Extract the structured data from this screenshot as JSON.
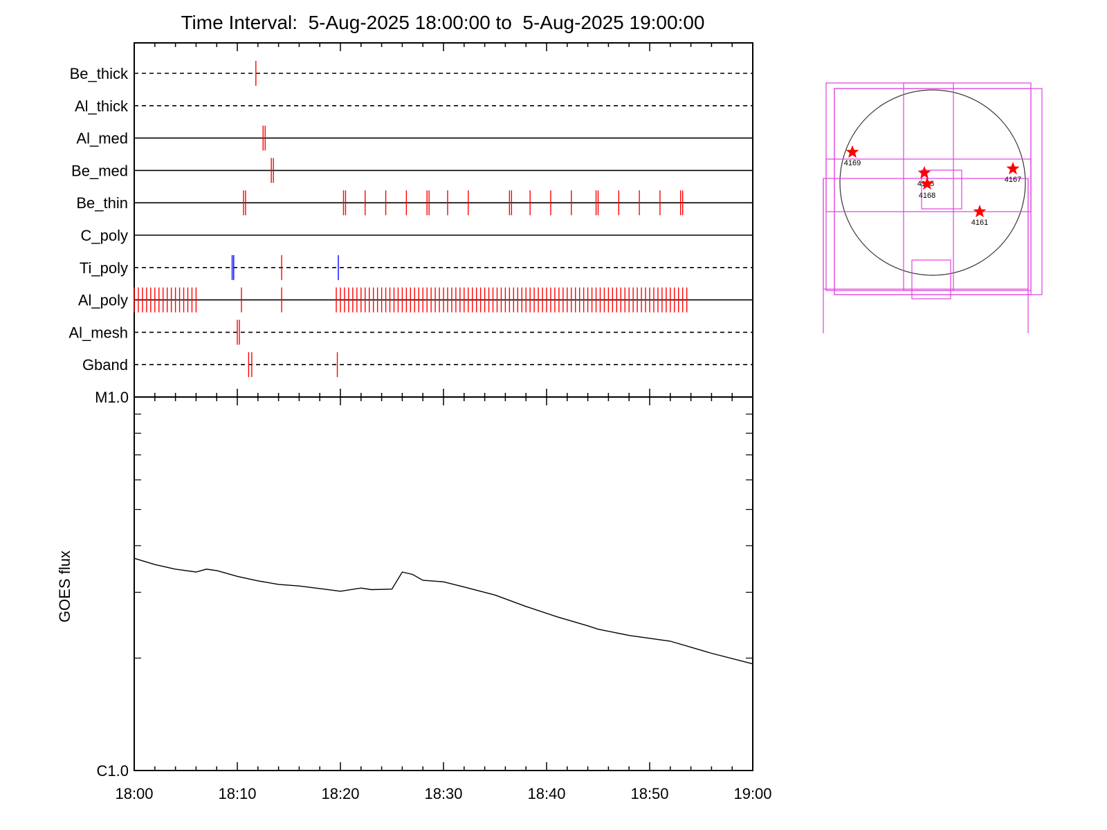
{
  "title": "Time Interval:  5-Aug-2025 18:00:00 to  5-Aug-2025 19:00:00",
  "colors": {
    "event_red": "#ff0000",
    "event_blue": "#0000ff",
    "axis": "#000000",
    "fov_box": "#e040e0",
    "star": "#ff0000"
  },
  "chart_data": [
    {
      "type": "timeline",
      "name": "filter_events",
      "x_range": [
        "18:00",
        "19:00"
      ],
      "x_tick_labels": [
        "18:00",
        "18:10",
        "18:20",
        "18:30",
        "18:40",
        "18:50",
        "19:00"
      ],
      "rows": [
        {
          "label": "Be_thick",
          "line": "dashed",
          "events": [
            {
              "t": 11.8,
              "color": "red"
            }
          ]
        },
        {
          "label": "Al_thick",
          "line": "dashed",
          "events": []
        },
        {
          "label": "Al_med",
          "line": "solid",
          "events": [
            {
              "t": 12.5,
              "color": "red"
            },
            {
              "t": 12.7,
              "color": "red"
            }
          ]
        },
        {
          "label": "Be_med",
          "line": "solid",
          "events": [
            {
              "t": 13.3,
              "color": "red"
            },
            {
              "t": 13.5,
              "color": "red"
            }
          ]
        },
        {
          "label": "Be_thin",
          "line": "solid",
          "events_minutes": [
            10.6,
            10.8,
            20.3,
            20.5,
            22.4,
            24.4,
            26.4,
            28.4,
            28.6,
            30.4,
            32.4,
            36.4,
            36.6,
            38.4,
            40.4,
            42.4,
            44.8,
            45.0,
            47.0,
            49.0,
            51.0,
            53.0,
            53.2
          ]
        },
        {
          "label": "C_poly",
          "line": "solid",
          "events": []
        },
        {
          "label": "Ti_poly",
          "line": "dashed",
          "events": [
            {
              "t": 9.5,
              "color": "blue"
            },
            {
              "t": 9.65,
              "color": "blue"
            },
            {
              "t": 14.3,
              "color": "red"
            },
            {
              "t": 19.8,
              "color": "blue"
            }
          ]
        },
        {
          "label": "Al_poly",
          "line": "solid",
          "events_minutes": "dense: 0.0-6.0 every 0.4 min; 10.4; 14.3; 19.6-53.6 every ~0.4 min"
        },
        {
          "label": "Al_mesh",
          "line": "dashed",
          "events": [
            {
              "t": 10.0,
              "color": "red"
            },
            {
              "t": 10.2,
              "color": "red"
            }
          ]
        },
        {
          "label": "Gband",
          "line": "dashed",
          "events": [
            {
              "t": 11.1,
              "color": "red"
            },
            {
              "t": 11.4,
              "color": "red"
            },
            {
              "t": 19.7,
              "color": "red"
            }
          ]
        }
      ]
    },
    {
      "type": "line",
      "name": "goes_flux",
      "ylabel": "GOES flux",
      "y_scale": "log",
      "y_tick_labels": [
        "M1.0",
        "C1.0"
      ],
      "ylim": [
        1e-06,
        1e-05
      ],
      "x_tick_labels": [
        "18:00",
        "18:10",
        "18:20",
        "18:30",
        "18:40",
        "18:50",
        "19:00"
      ],
      "series": [
        {
          "x_minutes": [
            0,
            2,
            4,
            6,
            7,
            8,
            9,
            10,
            12,
            14,
            16,
            18,
            20,
            22,
            23,
            25,
            26,
            27,
            28,
            30,
            32,
            35,
            38,
            41,
            44,
            45,
            48,
            52,
            56,
            60
          ],
          "values": [
            3.7e-06,
            3.56e-06,
            3.46e-06,
            3.4e-06,
            3.46e-06,
            3.43e-06,
            3.37e-06,
            3.31e-06,
            3.22e-06,
            3.15e-06,
            3.12e-06,
            3.07e-06,
            3.02e-06,
            3.08e-06,
            3.05e-06,
            3.06e-06,
            3.4e-06,
            3.35e-06,
            3.23e-06,
            3.2e-06,
            3.1e-06,
            2.95e-06,
            2.75e-06,
            2.58e-06,
            2.44e-06,
            2.39e-06,
            2.3e-06,
            2.22e-06,
            2.06e-06,
            1.93e-06
          ]
        }
      ]
    },
    {
      "type": "scatter",
      "name": "solar_disk_map",
      "points": [
        {
          "label": "4169"
        },
        {
          "label": "4165"
        },
        {
          "label": "4168"
        },
        {
          "label": "4167"
        },
        {
          "label": "4161"
        }
      ]
    }
  ]
}
